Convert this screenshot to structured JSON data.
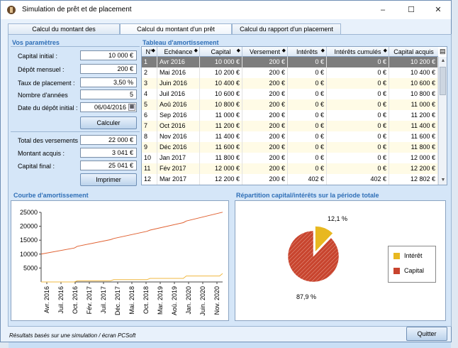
{
  "window": {
    "title": "Simulation de prêt et de placement",
    "minimize": "–",
    "maximize": "☐",
    "close": "✕"
  },
  "tabs": [
    {
      "label": "Calcul du montant des remboursements"
    },
    {
      "label": "Calcul du montant d'un prêt"
    },
    {
      "label": "Calcul du rapport d'un placement"
    }
  ],
  "params": {
    "title": "Vos paramètres",
    "capital_label": "Capital initial :",
    "capital_value": "10 000 €",
    "depot_label": "Dépôt mensuel :",
    "depot_value": "200 €",
    "taux_label": "Taux de placement :",
    "taux_value": "3,50 %",
    "annees_label": "Nombre d'années",
    "annees_value": "5",
    "date_label": "Date du dépôt initial :",
    "date_value": "06/04/2016",
    "calculate_button": "Calculer",
    "total_label": "Total des versements :",
    "total_value": "22 000 €",
    "acquis_label": "Montant acquis :",
    "acquis_value": "3 041 €",
    "final_label": "Capital final :",
    "final_value": "25 041 €",
    "print_button": "Imprimer"
  },
  "table": {
    "title": "Tableau d'amortissement",
    "columns": [
      "N°",
      "Echéance",
      "Capital",
      "Versement",
      "Intérêts",
      "Intérêts cumulés",
      "Capital acquis"
    ],
    "rows": [
      [
        "1",
        "Avr 2016",
        "10 000 €",
        "200 €",
        "0 €",
        "0 €",
        "10 200 €"
      ],
      [
        "2",
        "Mai 2016",
        "10 200 €",
        "200 €",
        "0 €",
        "0 €",
        "10 400 €"
      ],
      [
        "3",
        "Juin 2016",
        "10 400 €",
        "200 €",
        "0 €",
        "0 €",
        "10 600 €"
      ],
      [
        "4",
        "Juil 2016",
        "10 600 €",
        "200 €",
        "0 €",
        "0 €",
        "10 800 €"
      ],
      [
        "5",
        "Aoû 2016",
        "10 800 €",
        "200 €",
        "0 €",
        "0 €",
        "11 000 €"
      ],
      [
        "6",
        "Sep 2016",
        "11 000 €",
        "200 €",
        "0 €",
        "0 €",
        "11 200 €"
      ],
      [
        "7",
        "Oct 2016",
        "11 200 €",
        "200 €",
        "0 €",
        "0 €",
        "11 400 €"
      ],
      [
        "8",
        "Nov 2016",
        "11 400 €",
        "200 €",
        "0 €",
        "0 €",
        "11 600 €"
      ],
      [
        "9",
        "Déc 2016",
        "11 600 €",
        "200 €",
        "0 €",
        "0 €",
        "11 800 €"
      ],
      [
        "10",
        "Jan 2017",
        "11 800 €",
        "200 €",
        "0 €",
        "0 €",
        "12 000 €"
      ],
      [
        "11",
        "Fév 2017",
        "12 000 €",
        "200 €",
        "0 €",
        "0 €",
        "12 200 €"
      ],
      [
        "12",
        "Mar 2017",
        "12 200 €",
        "200 €",
        "402 €",
        "402 €",
        "12 802 €"
      ]
    ]
  },
  "line_chart_title": "Courbe d'amortissement",
  "pie_chart_title": "Répartition capital/intérêts sur la période totale",
  "legend": {
    "interet": "Intérêt",
    "capital": "Capital"
  },
  "status_text": "Résultats basés sur une simulation / écran PCSoft",
  "quit_button": "Quitter",
  "chart_data": [
    {
      "type": "line",
      "title": "",
      "ylim": [
        0,
        25000
      ],
      "yticks": [
        5000,
        10000,
        15000,
        20000,
        25000
      ],
      "x_tick_labels": [
        "Avr. 2016",
        "Juil. 2016",
        "Oct. 2016",
        "Fév. 2017",
        "Juil. 2017",
        "Déc. 2017",
        "Mai. 2018",
        "Oct. 2018",
        "Mar. 2019",
        "Aoû. 2019",
        "Jan. 2020",
        "Juin. 2020",
        "Nov. 2020"
      ],
      "series": [
        {
          "color": "#e06030",
          "points": [
            [
              0,
              10000
            ],
            [
              11,
              12200
            ],
            [
              12,
              12802
            ],
            [
              23,
              15200
            ],
            [
              24,
              15614
            ],
            [
              35,
              18200
            ],
            [
              36,
              18634
            ],
            [
              47,
              21300
            ],
            [
              48,
              21886
            ],
            [
              59,
              24800
            ],
            [
              60,
              25041
            ]
          ]
        },
        {
          "color": "#f0b840",
          "points": [
            [
              0,
              0
            ],
            [
              11,
              0
            ],
            [
              12,
              402
            ],
            [
              23,
              402
            ],
            [
              24,
              814
            ],
            [
              35,
              814
            ],
            [
              36,
              1270
            ],
            [
              47,
              1270
            ],
            [
              48,
              2150
            ],
            [
              59,
              2150
            ],
            [
              60,
              3041
            ]
          ]
        }
      ]
    },
    {
      "type": "pie",
      "title": "",
      "slices": [
        {
          "label": "Intérêt",
          "value": 12.1,
          "display": "12,1 %",
          "color": "#e8b820"
        },
        {
          "label": "Capital",
          "value": 87.9,
          "display": "87,9 %",
          "color": "#c8442e"
        }
      ]
    }
  ]
}
